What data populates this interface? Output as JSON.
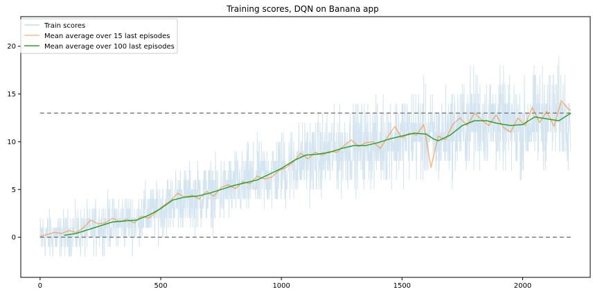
{
  "chart_data": {
    "type": "line",
    "title": "Training scores, DQN on Banana app",
    "xlabel": "",
    "ylabel": "",
    "xlim": [
      -80,
      2280
    ],
    "ylim": [
      -4.2,
      23.1
    ],
    "x_ticks": [
      0,
      500,
      1000,
      1500,
      2000
    ],
    "y_ticks": [
      0,
      5,
      10,
      15,
      20
    ],
    "grid": false,
    "legend_position": "top-left",
    "episodes": 2200,
    "series": [
      {
        "name": "Train scores",
        "color": "#c6dcec",
        "style": "raw-noisy",
        "trend_x": [
          0,
          100,
          200,
          300,
          400,
          450,
          500,
          550,
          600,
          700,
          800,
          900,
          1000,
          1100,
          1200,
          1300,
          1400,
          1500,
          1550,
          1600,
          1650,
          1700,
          1800,
          1900,
          2000,
          2050,
          2100,
          2200
        ],
        "trend_y": [
          0.1,
          0.2,
          0.8,
          1.6,
          1.8,
          2.5,
          3.0,
          3.8,
          4.2,
          4.5,
          5.2,
          6.0,
          7.0,
          8.3,
          8.8,
          9.6,
          9.8,
          10.6,
          10.9,
          10.8,
          10.2,
          11.0,
          12.3,
          12.0,
          11.5,
          12.3,
          12.8,
          13.0
        ],
        "spread": 2.5,
        "min": -3,
        "max": 22
      },
      {
        "name": "Mean average over 15 last episodes",
        "color": "#ff7f0e",
        "opacity": 0.55,
        "x": [
          0,
          30,
          60,
          90,
          120,
          150,
          180,
          210,
          240,
          270,
          300,
          330,
          360,
          390,
          420,
          450,
          480,
          510,
          540,
          570,
          600,
          630,
          660,
          690,
          720,
          750,
          780,
          810,
          840,
          870,
          900,
          930,
          960,
          990,
          1020,
          1050,
          1080,
          1110,
          1140,
          1170,
          1200,
          1230,
          1260,
          1290,
          1320,
          1350,
          1380,
          1410,
          1440,
          1470,
          1500,
          1530,
          1560,
          1590,
          1620,
          1650,
          1680,
          1710,
          1740,
          1770,
          1800,
          1830,
          1860,
          1890,
          1920,
          1950,
          1980,
          2010,
          2040,
          2070,
          2100,
          2130,
          2160,
          2190,
          2200
        ],
        "y": [
          0.1,
          0.3,
          0.5,
          0.4,
          0.7,
          0.5,
          1.0,
          1.8,
          1.4,
          1.5,
          2.0,
          1.6,
          1.9,
          1.5,
          2.2,
          2.0,
          2.6,
          3.3,
          3.8,
          4.6,
          4.2,
          4.4,
          4.0,
          4.8,
          4.3,
          5.2,
          5.5,
          5.1,
          5.8,
          5.6,
          6.4,
          6.1,
          6.3,
          7.0,
          7.3,
          7.9,
          8.8,
          8.2,
          8.9,
          8.6,
          9.0,
          8.9,
          9.6,
          10.2,
          9.5,
          9.9,
          10.0,
          9.3,
          10.5,
          11.6,
          10.4,
          10.9,
          10.7,
          11.8,
          7.3,
          10.6,
          10.2,
          11.8,
          12.5,
          11.7,
          13.0,
          12.3,
          11.7,
          12.8,
          11.5,
          11.0,
          12.5,
          11.7,
          13.6,
          12.0,
          13.2,
          11.6,
          14.3,
          13.4,
          13.3
        ]
      },
      {
        "name": "Mean average over 100 last episodes",
        "color": "#2ca02c",
        "x": [
          100,
          150,
          200,
          250,
          300,
          350,
          400,
          450,
          500,
          550,
          600,
          650,
          700,
          750,
          800,
          850,
          900,
          950,
          1000,
          1050,
          1100,
          1150,
          1200,
          1250,
          1300,
          1350,
          1400,
          1450,
          1500,
          1550,
          1600,
          1630,
          1650,
          1700,
          1750,
          1800,
          1850,
          1900,
          1950,
          2000,
          2050,
          2100,
          2150,
          2200
        ],
        "y": [
          0.2,
          0.4,
          0.8,
          1.2,
          1.6,
          1.7,
          1.8,
          2.3,
          3.0,
          3.9,
          4.2,
          4.3,
          4.6,
          5.0,
          5.4,
          5.7,
          6.0,
          6.6,
          7.2,
          8.0,
          8.6,
          8.7,
          8.9,
          9.3,
          9.6,
          9.6,
          9.9,
          10.3,
          10.6,
          10.9,
          10.8,
          10.3,
          10.1,
          10.7,
          11.7,
          12.2,
          12.2,
          11.9,
          11.7,
          11.8,
          12.6,
          12.4,
          12.2,
          13.0
        ]
      }
    ],
    "reference_lines": [
      {
        "y": 13,
        "x_range": [
          0,
          2200
        ],
        "color": "#808080",
        "style": "dashed"
      },
      {
        "y": 0,
        "x_range": [
          0,
          2200
        ],
        "color": "#808080",
        "style": "dashed"
      }
    ]
  }
}
